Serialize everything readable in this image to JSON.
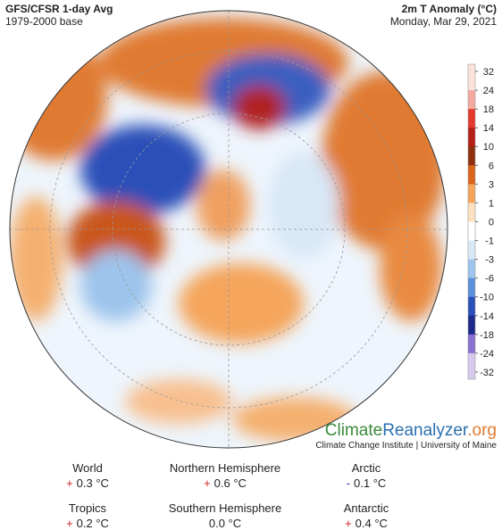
{
  "header": {
    "title": "GFS/CFSR 1-day Avg",
    "subtitle": "1979-2000 base",
    "variable": "2m T Anomaly (°C)",
    "date": "Monday, Mar 29, 2021"
  },
  "colorbar": {
    "labels": [
      32,
      24,
      18,
      14,
      10,
      6,
      3,
      1,
      0,
      -1,
      -3,
      -6,
      -10,
      -14,
      -18,
      -24,
      -32
    ],
    "colors": [
      "#fbe3dc",
      "#f4a9a0",
      "#e43a2e",
      "#b51f1a",
      "#8e3010",
      "#d9641a",
      "#f5a55b",
      "#fde0c0",
      "#ffffff",
      "#d8e8f7",
      "#9cc4ec",
      "#5b8fdc",
      "#2a4fb8",
      "#1d2a8a",
      "#8a70d0",
      "#d8c8ee"
    ]
  },
  "brand": {
    "part1": "Climate",
    "part2": "Reanalyzer",
    "part3": ".org",
    "credit": "Climate Change Institute | University of Maine"
  },
  "stats": [
    {
      "region": "World",
      "sign": "+",
      "value": "0.3 °C"
    },
    {
      "region": "Northern Hemisphere",
      "sign": "+",
      "value": "0.6 °C"
    },
    {
      "region": "Arctic",
      "sign": "-",
      "value": "0.1 °C"
    },
    {
      "region": "Tropics",
      "sign": "+",
      "value": "0.2 °C"
    },
    {
      "region": "Southern Hemisphere",
      "sign": "",
      "value": "0.0 °C"
    },
    {
      "region": "Antarctic",
      "sign": "+",
      "value": "0.4 °C"
    }
  ]
}
